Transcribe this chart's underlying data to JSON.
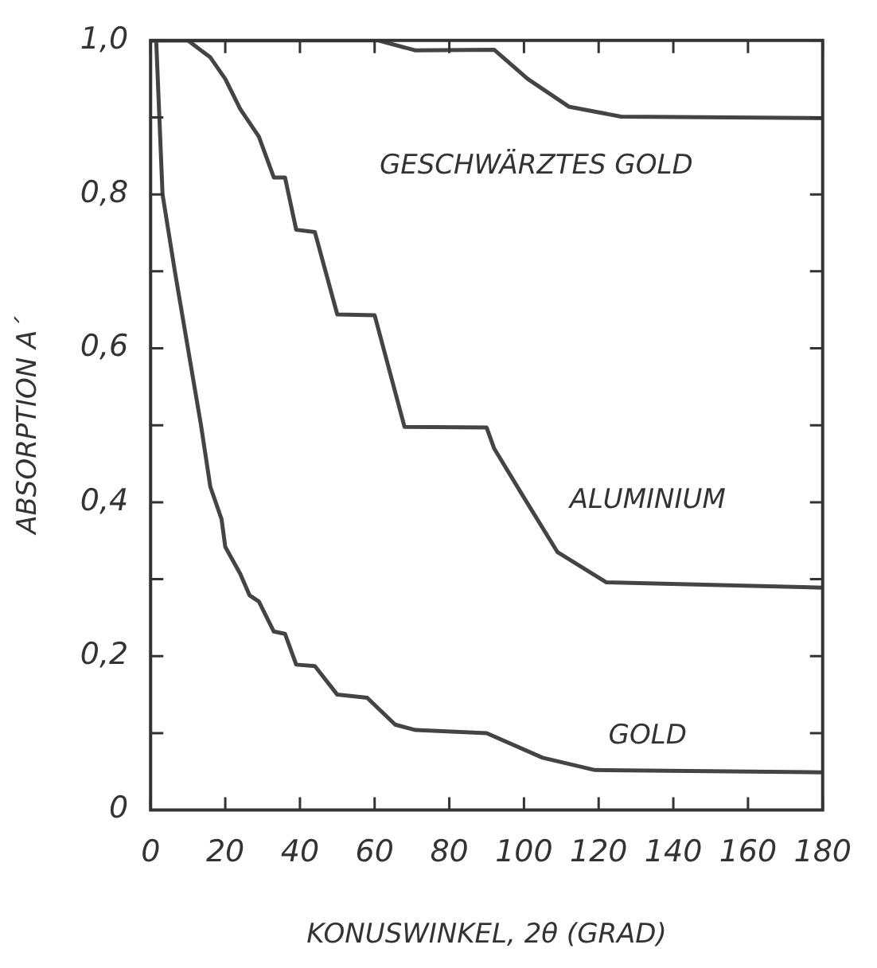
{
  "chart_data": {
    "type": "line",
    "xlabel": "KONUSWINKEL, 2θ (GRAD)",
    "ylabel": "ABSORPTION A´",
    "xlim": [
      0,
      180
    ],
    "ylim": [
      0,
      1
    ],
    "xticks": [
      0,
      20,
      40,
      60,
      80,
      100,
      120,
      140,
      160,
      180
    ],
    "yticks": [
      {
        "value": 0,
        "label": "0"
      },
      {
        "value": 0.1,
        "label": null
      },
      {
        "value": 0.2,
        "label": "0,2"
      },
      {
        "value": 0.3,
        "label": null
      },
      {
        "value": 0.4,
        "label": "0,4"
      },
      {
        "value": 0.5,
        "label": null
      },
      {
        "value": 0.6,
        "label": "0,6"
      },
      {
        "value": 0.7,
        "label": null
      },
      {
        "value": 0.8,
        "label": "0,8"
      },
      {
        "value": 0.9,
        "label": null
      },
      {
        "value": 1,
        "label": "1,0"
      }
    ],
    "grid": false,
    "legend": false,
    "marker": "none",
    "line_style": "solid",
    "series": [
      {
        "name": "GESCHWÄRZTES GOLD",
        "color": "#444444",
        "x": [
          0,
          61,
          71,
          92,
          101,
          112,
          126,
          180
        ],
        "values": [
          1,
          1,
          0.987,
          0.988,
          0.95,
          0.914,
          0.901,
          0.899
        ]
      },
      {
        "name": "ALUMINIUM",
        "color": "#444444",
        "x": [
          0,
          10,
          16,
          20,
          24,
          29,
          33,
          36,
          39,
          44,
          50,
          60,
          68,
          90,
          92,
          100,
          109,
          122,
          180
        ],
        "values": [
          1,
          1,
          0.978,
          0.95,
          0.911,
          0.875,
          0.822,
          0.822,
          0.754,
          0.751,
          0.644,
          0.643,
          0.498,
          0.497,
          0.47,
          0.406,
          0.335,
          0.296,
          0.289
        ]
      },
      {
        "name": "GOLD",
        "color": "#444444",
        "x": [
          0,
          1.5,
          3.2,
          6.5,
          10,
          13.5,
          16,
          19,
          20,
          24,
          26.5,
          29,
          33,
          36,
          39,
          44,
          50,
          58,
          65.5,
          71,
          90,
          105,
          119,
          180
        ],
        "values": [
          1,
          1,
          0.8,
          0.7,
          0.6,
          0.5,
          0.42,
          0.378,
          0.342,
          0.307,
          0.279,
          0.271,
          0.232,
          0.229,
          0.189,
          0.187,
          0.15,
          0.146,
          0.111,
          0.104,
          0.1,
          0.068,
          0.052,
          0.049
        ]
      }
    ]
  }
}
